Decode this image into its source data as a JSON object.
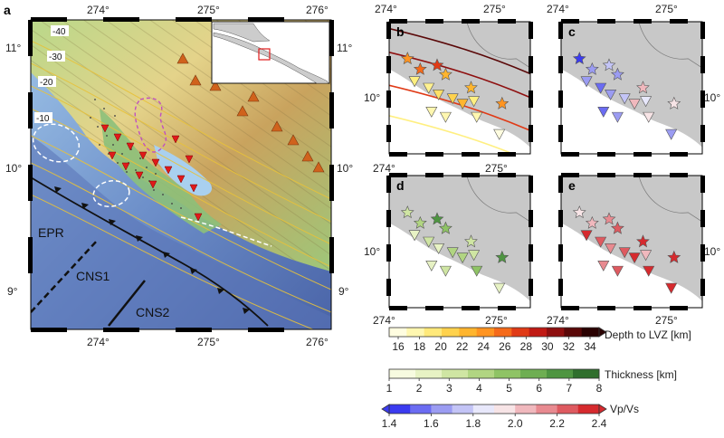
{
  "panel_a": {
    "label": "a",
    "lon_ticks": [
      "274°",
      "275°",
      "276°"
    ],
    "lat_ticks": [
      "11°",
      "10°",
      "9°"
    ],
    "contour_labels": [
      "-40",
      "-30",
      "-20",
      "-10"
    ],
    "features": {
      "epr": "EPR",
      "cns1": "CNS1",
      "cns2": "CNS2"
    }
  },
  "panels_small": [
    {
      "id": "b",
      "label": "b",
      "variable": "Depth to LVZ"
    },
    {
      "id": "c",
      "label": "c",
      "variable": "Vp/Vs"
    },
    {
      "id": "d",
      "label": "d",
      "variable": "Thickness"
    },
    {
      "id": "e",
      "label": "e",
      "variable": "Vp/Vs"
    }
  ],
  "small_axes": {
    "lon_ticks": [
      "274°",
      "275°"
    ],
    "lat_tick": "10°"
  },
  "colorbars": [
    {
      "id": "depth",
      "title": "Depth to LVZ [km]",
      "ticks": [
        "16",
        "18",
        "20",
        "22",
        "24",
        "26",
        "28",
        "30",
        "32",
        "34"
      ],
      "colors": [
        "#fffde0",
        "#fff7b0",
        "#ffe97a",
        "#ffd24d",
        "#ffb52e",
        "#ff9421",
        "#f56a1a",
        "#e03a16",
        "#c01a14",
        "#8e0f0f",
        "#5a0808",
        "#2a0202"
      ]
    },
    {
      "id": "thickness",
      "title": "Thickness [km]",
      "ticks": [
        "1",
        "2",
        "3",
        "4",
        "5",
        "6",
        "7",
        "8"
      ],
      "colors": [
        "#f7fbe0",
        "#e7f2c4",
        "#cfe5a3",
        "#b1d582",
        "#8fc365",
        "#6eae52",
        "#4e9541",
        "#2f6f2d"
      ]
    },
    {
      "id": "vpvs",
      "title": "Vp/Vs",
      "ticks": [
        "1.4",
        "1.6",
        "1.8",
        "2.0",
        "2.2",
        "2.4"
      ],
      "colors": [
        "#3b3bf0",
        "#6b6cf2",
        "#9b9cf2",
        "#c3c4f6",
        "#e8e8fb",
        "#f7e4e6",
        "#f0b8bd",
        "#e88a90",
        "#de5a60",
        "#d62a2e"
      ]
    }
  ]
}
